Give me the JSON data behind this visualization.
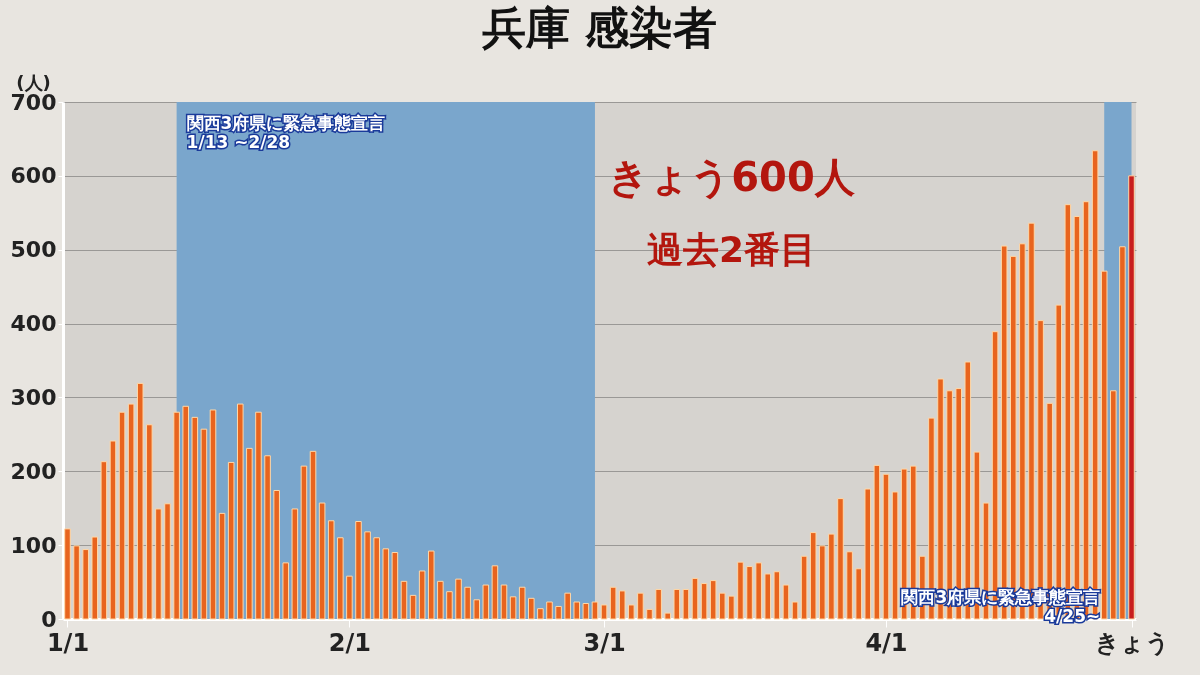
{
  "chart_data": {
    "type": "bar",
    "title": "兵庫 感染者",
    "ylabel": "(人)",
    "x": [
      "--01-01",
      "--01-02",
      "--01-03",
      "--01-04",
      "--01-05",
      "--01-06",
      "--01-07",
      "--01-08",
      "--01-09",
      "--01-10",
      "--01-11",
      "--01-12",
      "--01-13",
      "--01-14",
      "--01-15",
      "--01-16",
      "--01-17",
      "--01-18",
      "--01-19",
      "--01-20",
      "--01-21",
      "--01-22",
      "--01-23",
      "--01-24",
      "--01-25",
      "--01-26",
      "--01-27",
      "--01-28",
      "--01-29",
      "--01-30",
      "--01-31",
      "--02-01",
      "--02-02",
      "--02-03",
      "--02-04",
      "--02-05",
      "--02-06",
      "--02-07",
      "--02-08",
      "--02-09",
      "--02-10",
      "--02-11",
      "--02-12",
      "--02-13",
      "--02-14",
      "--02-15",
      "--02-16",
      "--02-17",
      "--02-18",
      "--02-19",
      "--02-20",
      "--02-21",
      "--02-22",
      "--02-23",
      "--02-24",
      "--02-25",
      "--02-26",
      "--02-27",
      "--02-28",
      "--03-01",
      "--03-02",
      "--03-03",
      "--03-04",
      "--03-05",
      "--03-06",
      "--03-07",
      "--03-08",
      "--03-09",
      "--03-10",
      "--03-11",
      "--03-12",
      "--03-13",
      "--03-14",
      "--03-15",
      "--03-16",
      "--03-17",
      "--03-18",
      "--03-19",
      "--03-20",
      "--03-21",
      "--03-22",
      "--03-23",
      "--03-24",
      "--03-25",
      "--03-26",
      "--03-27",
      "--03-28",
      "--03-29",
      "--03-30",
      "--03-31",
      "--04-01",
      "--04-02",
      "--04-03",
      "--04-04",
      "--04-05",
      "--04-06",
      "--04-07",
      "--04-08",
      "--04-09",
      "--04-10",
      "--04-11",
      "--04-12",
      "--04-13",
      "--04-14",
      "--04-15",
      "--04-16",
      "--04-17",
      "--04-18",
      "--04-19",
      "--04-20",
      "--04-21",
      "--04-22",
      "--04-23",
      "--04-24",
      "--04-25",
      "--04-26",
      "--04-27",
      "--04-28"
    ],
    "values": [
      122,
      99,
      94,
      111,
      213,
      241,
      280,
      291,
      319,
      263,
      149,
      156,
      280,
      288,
      273,
      257,
      283,
      143,
      212,
      291,
      231,
      280,
      221,
      174,
      76,
      149,
      207,
      227,
      157,
      133,
      110,
      58,
      132,
      118,
      110,
      95,
      90,
      51,
      32,
      65,
      92,
      51,
      37,
      54,
      43,
      26,
      46,
      72,
      46,
      30,
      43,
      28,
      14,
      23,
      17,
      35,
      23,
      21,
      23,
      19,
      43,
      38,
      19,
      35,
      13,
      40,
      8,
      40,
      40,
      55,
      48,
      52,
      35,
      31,
      77,
      71,
      76,
      61,
      64,
      46,
      23,
      85,
      117,
      99,
      115,
      163,
      91,
      68,
      176,
      208,
      196,
      172,
      203,
      207,
      85,
      272,
      325,
      309,
      312,
      348,
      226,
      157,
      389,
      505,
      491,
      508,
      536,
      404,
      292,
      425,
      561,
      545,
      565,
      634,
      471,
      309,
      504,
      600
    ],
    "colors": [
      "#e8641e",
      "#e8641e",
      "#e8641e",
      "#e8641e",
      "#e8641e",
      "#e8641e",
      "#e8641e",
      "#e8641e",
      "#e8641e",
      "#e8641e",
      "#e8641e",
      "#e8641e",
      "#e8641e",
      "#e8641e",
      "#e8641e",
      "#e8641e",
      "#e8641e",
      "#e8641e",
      "#e8641e",
      "#e8641e",
      "#e8641e",
      "#e8641e",
      "#e8641e",
      "#e8641e",
      "#e8641e",
      "#e8641e",
      "#e8641e",
      "#e8641e",
      "#e8641e",
      "#e8641e",
      "#e8641e",
      "#e8641e",
      "#e8641e",
      "#e8641e",
      "#e8641e",
      "#e8641e",
      "#e8641e",
      "#e8641e",
      "#e8641e",
      "#e8641e",
      "#e8641e",
      "#e8641e",
      "#e8641e",
      "#e8641e",
      "#e8641e",
      "#e8641e",
      "#e8641e",
      "#e8641e",
      "#e8641e",
      "#e8641e",
      "#e8641e",
      "#e8641e",
      "#e8641e",
      "#e8641e",
      "#e8641e",
      "#e8641e",
      "#e8641e",
      "#e8641e",
      "#e8641e",
      "#e8641e",
      "#e8641e",
      "#e8641e",
      "#e8641e",
      "#e8641e",
      "#e8641e",
      "#e8641e",
      "#e8641e",
      "#e8641e",
      "#e8641e",
      "#e8641e",
      "#e8641e",
      "#e8641e",
      "#e8641e",
      "#e8641e",
      "#e8641e",
      "#e8641e",
      "#e8641e",
      "#e8641e",
      "#e8641e",
      "#e8641e",
      "#e8641e",
      "#e8641e",
      "#e8641e",
      "#e8641e",
      "#e8641e",
      "#e8641e",
      "#e8641e",
      "#e8641e",
      "#e8641e",
      "#e8641e",
      "#e8641e",
      "#e8641e",
      "#e8641e",
      "#e8641e",
      "#e8641e",
      "#e8641e",
      "#e8641e",
      "#e8641e",
      "#e8641e",
      "#e8641e",
      "#e8641e",
      "#e8641e",
      "#e8641e",
      "#e8641e",
      "#e8641e",
      "#e8641e",
      "#e8641e",
      "#e8641e",
      "#e8641e",
      "#e8641e",
      "#e8641e",
      "#e8641e",
      "#e8641e",
      "#e8641e",
      "#e8641e",
      "#e8641e",
      "#e8641e",
      "#c81e1e"
    ],
    "xlim": [
      "--01-01",
      "--04-28"
    ],
    "xticks": [
      {
        "value": "--01-01",
        "label": "1/1"
      },
      {
        "value": "--02-01",
        "label": "2/1"
      },
      {
        "value": "--03-01",
        "label": "3/1"
      },
      {
        "value": "--04-01",
        "label": "4/1"
      },
      {
        "value": "--04-28",
        "label": "きょう"
      }
    ],
    "ylim": [
      0,
      700
    ],
    "yticks": [
      0,
      100,
      200,
      300,
      400,
      500,
      600,
      700
    ],
    "grid": "y",
    "bands": [
      {
        "axis": "x",
        "from": "--01-13",
        "to": "--02-28",
        "label": "関西3府県に緊急事態宣言\n1/13 ~2/28",
        "color": "#7aa6cc"
      },
      {
        "axis": "x",
        "from": "--04-25",
        "to": "--04-28",
        "label": "関西3府県に緊急事態宣言\n4/25~",
        "color": "#7aa6cc"
      }
    ],
    "annotations": [
      "きょう600人",
      "過去2番目"
    ]
  }
}
